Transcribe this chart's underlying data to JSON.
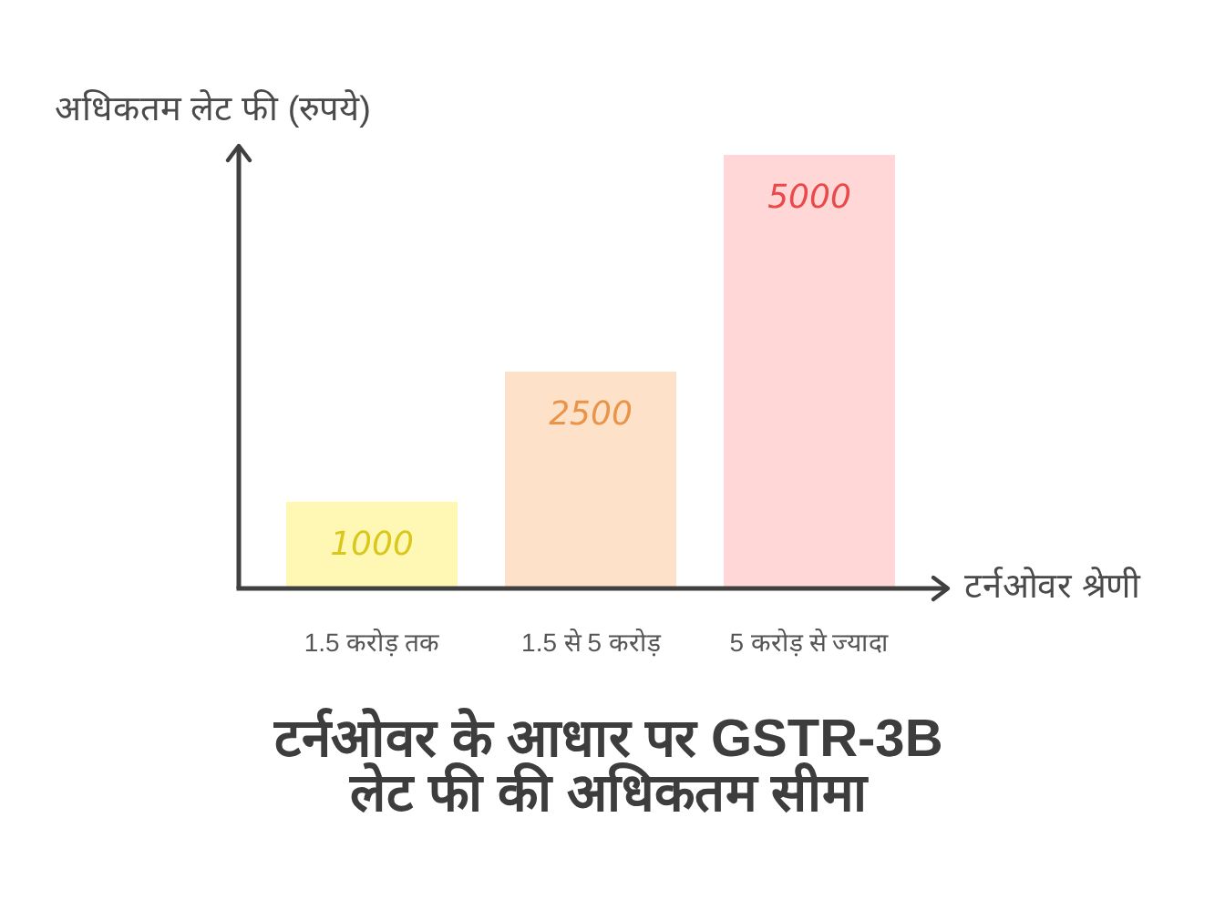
{
  "chart_data": {
    "type": "bar",
    "title": "टर्नओवर के आधार पर GSTR-3B\nलेट फी की अधिकतम सीमा",
    "xlabel": "टर्नओवर श्रेणी",
    "ylabel": "अधिकतम लेट फी (रुपये)",
    "categories": [
      "1.5 करोड़ तक",
      "1.5 से 5 करोड़",
      "5 करोड़ से ज्यादा"
    ],
    "values": [
      1000,
      2500,
      5000
    ],
    "colors": [
      "#fff8b5",
      "#fde1c9",
      "#ffd7d7"
    ],
    "data_labels": true
  }
}
